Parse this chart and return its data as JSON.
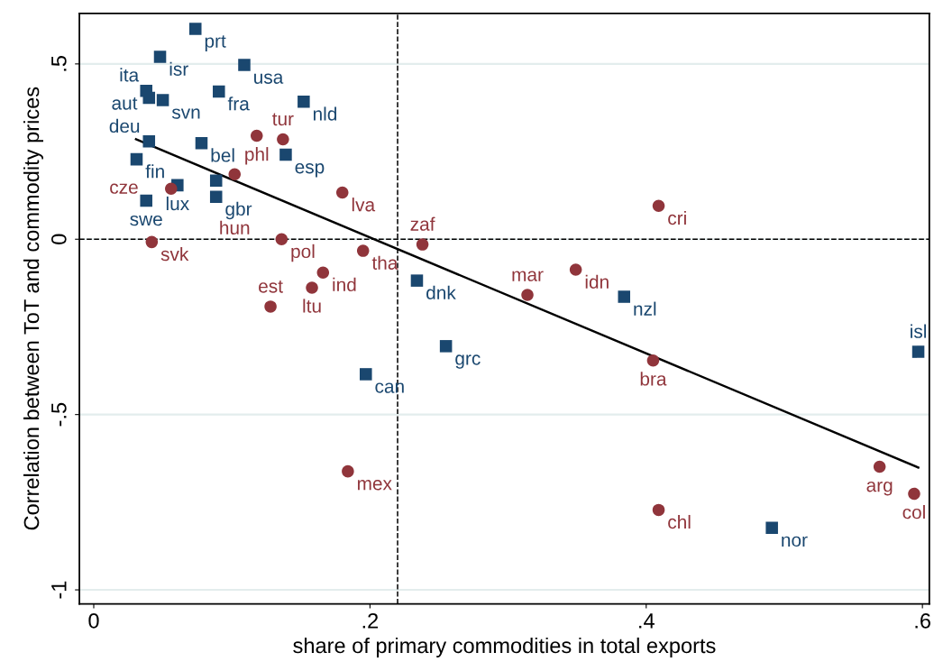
{
  "chart_data": {
    "type": "scatter",
    "xlabel": "share of primary commodities in total exports",
    "ylabel": "Correlation between ToT and commodity prices",
    "xlim": [
      -0.0104,
      0.605
    ],
    "ylim": [
      -1.04,
      0.644
    ],
    "xticks": [
      0,
      {
        "value": 0.2,
        "label": ".2"
      },
      {
        "value": 0.4,
        "label": ".4"
      },
      {
        "value": 0.6,
        "label": ".6"
      }
    ],
    "yticks": [
      -1,
      {
        "value": -0.5,
        "label": "-.5"
      },
      0,
      {
        "value": 0.5,
        "label": ".5"
      }
    ],
    "grid": "y",
    "series": [
      {
        "marker": "square",
        "color": "#1a476f",
        "x": [
          0.0736,
          0.048,
          0.109,
          0.038,
          0.04,
          0.05,
          0.0906,
          0.152,
          0.04,
          0.078,
          0.139,
          0.031,
          0.0606,
          0.0886,
          0.0886,
          0.038,
          0.234,
          0.384,
          0.597,
          0.255,
          0.197,
          0.491
        ],
        "values": [
          0.6,
          0.52,
          0.497,
          0.423,
          0.403,
          0.397,
          0.421,
          0.392,
          0.279,
          0.274,
          0.241,
          0.228,
          0.154,
          0.167,
          0.121,
          0.11,
          -0.118,
          -0.164,
          -0.321,
          -0.305,
          -0.385,
          -0.823
        ]
      },
      {
        "marker": "circle",
        "color": "#90353b",
        "x": [
          0.118,
          0.137,
          0.102,
          0.056,
          0.18,
          0.409,
          0.042,
          0.136,
          0.195,
          0.238,
          0.166,
          0.349,
          0.158,
          0.314,
          0.128,
          0.405,
          0.184,
          0.569,
          0.594,
          0.409
        ],
        "values": [
          0.295,
          0.285,
          0.185,
          0.144,
          0.133,
          0.095,
          -0.008,
          0.0,
          -0.033,
          -0.015,
          -0.095,
          -0.087,
          -0.138,
          -0.159,
          -0.192,
          -0.346,
          -0.662,
          -0.649,
          -0.726,
          -0.772
        ]
      },
      {
        "type": "line",
        "color": "#000000",
        "x": [
          0.0306,
          0.597
        ],
        "values": [
          0.285,
          -0.651
        ]
      }
    ],
    "ref_lines": [
      {
        "axis": "x",
        "value": 0.22,
        "line_style": "dashed",
        "color": "#000000"
      },
      {
        "axis": "y",
        "value": 0,
        "line_style": "dashed",
        "color": "#000000"
      }
    ],
    "annotations": [
      {
        "text": "prt",
        "x": 0.0736,
        "y": 0.6
      },
      {
        "text": "isr",
        "x": 0.048,
        "y": 0.52
      },
      {
        "text": "usa",
        "x": 0.109,
        "y": 0.497
      },
      {
        "text": "aut",
        "x": 0.038,
        "y": 0.423
      },
      {
        "text": "ita",
        "x": 0.04,
        "y": 0.403
      },
      {
        "text": "svn",
        "x": 0.05,
        "y": 0.397
      },
      {
        "text": "fra",
        "x": 0.0906,
        "y": 0.421
      },
      {
        "text": "nld",
        "x": 0.152,
        "y": 0.392
      },
      {
        "text": "deu",
        "x": 0.04,
        "y": 0.279
      },
      {
        "text": "bel",
        "x": 0.078,
        "y": 0.274
      },
      {
        "text": "esp",
        "x": 0.139,
        "y": 0.241
      },
      {
        "text": "fin",
        "x": 0.031,
        "y": 0.228
      },
      {
        "text": "lux",
        "x": 0.0606,
        "y": 0.154
      },
      {
        "text": "gbr",
        "x": 0.0886,
        "y": 0.121
      },
      {
        "text": "swe",
        "x": 0.038,
        "y": 0.11
      },
      {
        "text": "dnk",
        "x": 0.234,
        "y": -0.118
      },
      {
        "text": "nzl",
        "x": 0.384,
        "y": -0.164
      },
      {
        "text": "isl",
        "x": 0.597,
        "y": -0.321
      },
      {
        "text": "grc",
        "x": 0.255,
        "y": -0.305
      },
      {
        "text": "can",
        "x": 0.197,
        "y": -0.385
      },
      {
        "text": "nor",
        "x": 0.491,
        "y": -0.823
      },
      {
        "text": "phl",
        "x": 0.118,
        "y": 0.295
      },
      {
        "text": "tur",
        "x": 0.137,
        "y": 0.285
      },
      {
        "text": "hun",
        "x": 0.102,
        "y": 0.185
      },
      {
        "text": "cze",
        "x": 0.056,
        "y": 0.144
      },
      {
        "text": "lva",
        "x": 0.18,
        "y": 0.133
      },
      {
        "text": "cri",
        "x": 0.409,
        "y": 0.095
      },
      {
        "text": "svk",
        "x": 0.042,
        "y": -0.008
      },
      {
        "text": "pol",
        "x": 0.136,
        "y": 0.0
      },
      {
        "text": "tha",
        "x": 0.195,
        "y": -0.033
      },
      {
        "text": "zaf",
        "x": 0.238,
        "y": -0.015
      },
      {
        "text": "ind",
        "x": 0.166,
        "y": -0.095
      },
      {
        "text": "idn",
        "x": 0.349,
        "y": -0.087
      },
      {
        "text": "ltu",
        "x": 0.158,
        "y": -0.138
      },
      {
        "text": "mar",
        "x": 0.314,
        "y": -0.159
      },
      {
        "text": "est",
        "x": 0.128,
        "y": -0.192
      },
      {
        "text": "bra",
        "x": 0.405,
        "y": -0.346
      },
      {
        "text": "mex",
        "x": 0.184,
        "y": -0.662
      },
      {
        "text": "arg",
        "x": 0.569,
        "y": -0.649
      },
      {
        "text": "col",
        "x": 0.594,
        "y": -0.726
      },
      {
        "text": "chl",
        "x": 0.409,
        "y": -0.772
      }
    ]
  }
}
